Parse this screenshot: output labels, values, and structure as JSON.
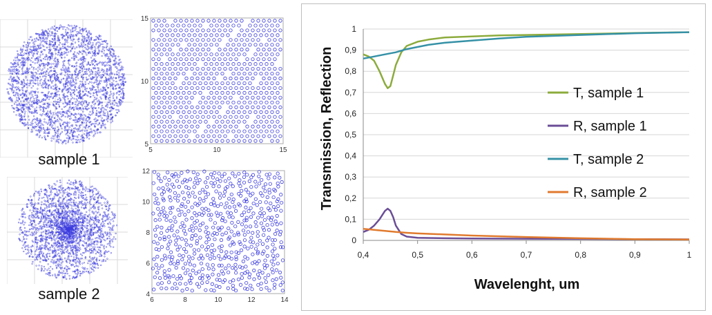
{
  "samples": {
    "sample1_label": "sample 1",
    "sample2_label": "sample 2",
    "zoom1_xticks": [
      "5",
      "10",
      "15"
    ],
    "zoom1_yticks": [
      "5",
      "10",
      "15"
    ],
    "zoom2_xticks": [
      "6",
      "8",
      "10",
      "12",
      "14"
    ],
    "zoom2_yticks": [
      "4",
      "6",
      "8",
      "10",
      "12"
    ],
    "dot_color": "#3a3adf"
  },
  "chart_data": {
    "type": "line",
    "xlabel": "Wavelenght, um",
    "ylabel": "Transmission, Reflection",
    "xlim": [
      0.4,
      1.0
    ],
    "ylim": [
      0,
      1
    ],
    "xticks": [
      "0,4",
      "0,5",
      "0,6",
      "0,7",
      "0,8",
      "0,9",
      "1"
    ],
    "yticks": [
      "0",
      "0,1",
      "0,2",
      "0,3",
      "0,4",
      "0,5",
      "0,6",
      "0,7",
      "0,8",
      "0,9",
      "1"
    ],
    "grid": "horizontal",
    "legend": "right",
    "series": [
      {
        "name": "T, sample 1",
        "color": "#8cab3c",
        "x": [
          0.4,
          0.41,
          0.42,
          0.43,
          0.44,
          0.445,
          0.45,
          0.455,
          0.46,
          0.47,
          0.48,
          0.5,
          0.52,
          0.55,
          0.6,
          0.65,
          0.7,
          0.8,
          0.9,
          1.0
        ],
        "y": [
          0.88,
          0.87,
          0.85,
          0.8,
          0.74,
          0.72,
          0.73,
          0.78,
          0.83,
          0.89,
          0.92,
          0.94,
          0.95,
          0.96,
          0.965,
          0.97,
          0.972,
          0.976,
          0.981,
          0.985
        ]
      },
      {
        "name": "R, sample 1",
        "color": "#6a4d96",
        "x": [
          0.4,
          0.41,
          0.42,
          0.43,
          0.44,
          0.445,
          0.45,
          0.455,
          0.46,
          0.47,
          0.48,
          0.5,
          0.55,
          0.6,
          0.7,
          0.8,
          0.9,
          1.0
        ],
        "y": [
          0.04,
          0.05,
          0.07,
          0.1,
          0.14,
          0.15,
          0.14,
          0.11,
          0.07,
          0.03,
          0.018,
          0.012,
          0.01,
          0.009,
          0.008,
          0.007,
          0.006,
          0.005
        ]
      },
      {
        "name": "T, sample 2",
        "color": "#3591a6",
        "x": [
          0.4,
          0.42,
          0.44,
          0.46,
          0.48,
          0.5,
          0.52,
          0.55,
          0.6,
          0.65,
          0.7,
          0.8,
          0.9,
          1.0
        ],
        "y": [
          0.86,
          0.87,
          0.88,
          0.89,
          0.905,
          0.915,
          0.925,
          0.935,
          0.945,
          0.955,
          0.963,
          0.972,
          0.98,
          0.985
        ]
      },
      {
        "name": "R, sample 2",
        "color": "#e07a2e",
        "x": [
          0.4,
          0.42,
          0.44,
          0.46,
          0.48,
          0.5,
          0.55,
          0.6,
          0.7,
          0.8,
          0.9,
          1.0
        ],
        "y": [
          0.055,
          0.05,
          0.045,
          0.04,
          0.036,
          0.033,
          0.028,
          0.023,
          0.016,
          0.01,
          0.006,
          0.004
        ]
      }
    ]
  }
}
